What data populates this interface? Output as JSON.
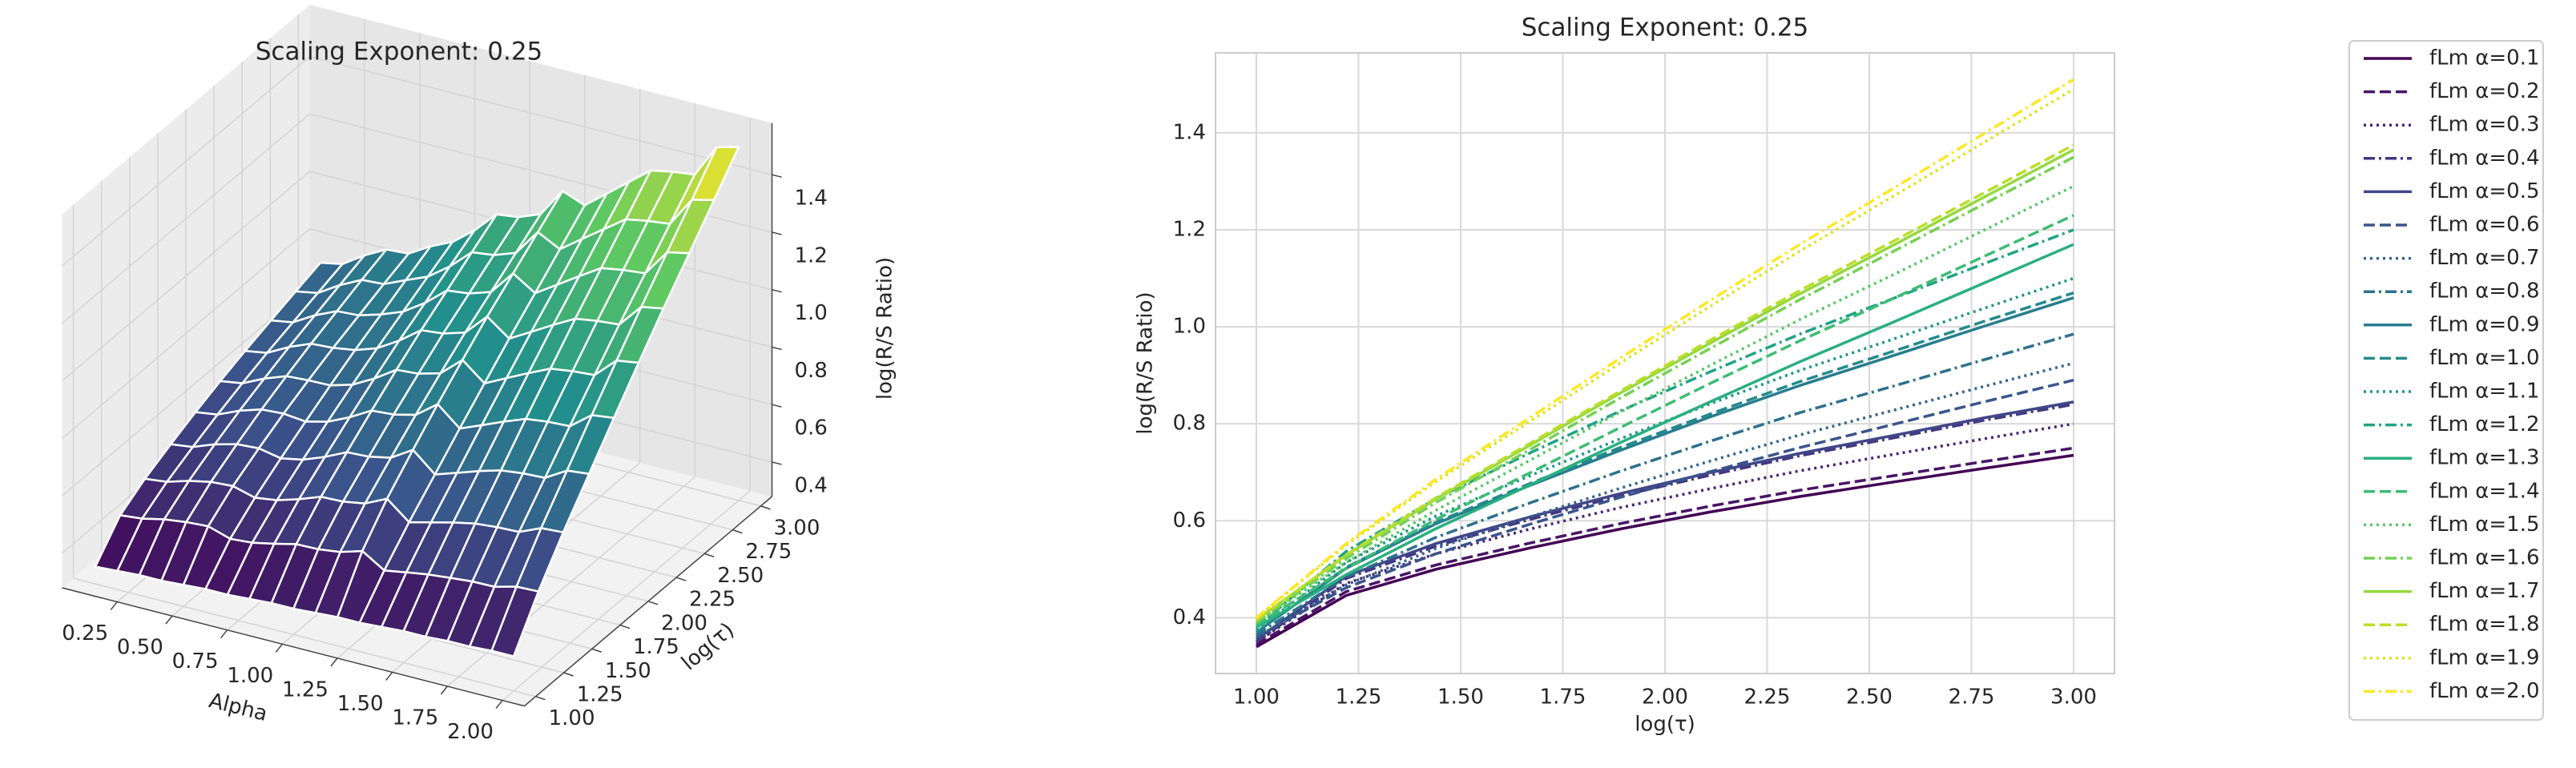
{
  "chart_data": [
    {
      "type": "surface",
      "title": "Scaling Exponent: 0.25",
      "xlabel": "Alpha",
      "ylabel": "log(τ)",
      "zlabel": "log(R/S Ratio)",
      "x": [
        0.1,
        0.2,
        0.3,
        0.4,
        0.5,
        0.6,
        0.7,
        0.8,
        0.9,
        1.0,
        1.1,
        1.2,
        1.3,
        1.4,
        1.5,
        1.6,
        1.7,
        1.8,
        1.9,
        2.0
      ],
      "xlim": [
        0,
        2.1
      ],
      "ylim": [
        0.9,
        3.1
      ],
      "zlim": [
        0.28,
        1.58
      ],
      "xticks": [
        {
          "value": 0.25,
          "label": "0.25"
        },
        {
          "value": 0.5,
          "label": "0.50"
        },
        {
          "value": 0.75,
          "label": "0.75"
        },
        {
          "value": 1,
          "label": "1.00"
        },
        {
          "value": 1.25,
          "label": "1.25"
        },
        {
          "value": 1.5,
          "label": "1.50"
        },
        {
          "value": 1.75,
          "label": "1.75"
        },
        {
          "value": 2,
          "label": "2.00"
        }
      ],
      "yticks": [
        {
          "value": 1,
          "label": "1.00"
        },
        {
          "value": 1.25,
          "label": "1.25"
        },
        {
          "value": 1.5,
          "label": "1.50"
        },
        {
          "value": 1.75,
          "label": "1.75"
        },
        {
          "value": 2,
          "label": "2.00"
        },
        {
          "value": 2.25,
          "label": "2.25"
        },
        {
          "value": 2.5,
          "label": "2.50"
        },
        {
          "value": 2.75,
          "label": "2.75"
        },
        {
          "value": 3,
          "label": "3.00"
        }
      ],
      "zticks": [
        0.4,
        0.6,
        0.8,
        {
          "value": 1,
          "label": "1.0"
        },
        1.2,
        1.4
      ],
      "colormap": "viridis",
      "edgecolor": "#ffffff"
    },
    {
      "type": "line",
      "title": "Scaling Exponent: 0.25",
      "xlabel": "log(τ)",
      "ylabel": "log(R/S Ratio)",
      "x": [
        1.0,
        1.22,
        1.44,
        1.67,
        1.89,
        2.11,
        2.33,
        2.56,
        2.78,
        3.0
      ],
      "xlim": [
        0.9,
        3.1
      ],
      "ylim": [
        0.285,
        1.565
      ],
      "xticks": [
        {
          "value": 1,
          "label": "1.00"
        },
        {
          "value": 1.25,
          "label": "1.25"
        },
        {
          "value": 1.5,
          "label": "1.50"
        },
        {
          "value": 1.75,
          "label": "1.75"
        },
        {
          "value": 2,
          "label": "2.00"
        },
        {
          "value": 2.25,
          "label": "2.25"
        },
        {
          "value": 2.5,
          "label": "2.50"
        },
        {
          "value": 2.75,
          "label": "2.75"
        },
        {
          "value": 3,
          "label": "3.00"
        }
      ],
      "yticks": [
        0.4,
        0.6,
        0.8,
        {
          "value": 1,
          "label": "1.0"
        },
        1.2,
        1.4
      ],
      "grid": true,
      "legend": "outside right",
      "series": [
        {
          "name": "fLm α=0.1",
          "color": "#440154",
          "style": "solid",
          "values": [
            0.34,
            0.446,
            0.5,
            0.544,
            0.583,
            0.618,
            0.65,
            0.68,
            0.708,
            0.735
          ]
        },
        {
          "name": "fLm α=0.2",
          "color": "#481467",
          "style": "dashed",
          "values": [
            0.345,
            0.454,
            0.509,
            0.554,
            0.594,
            0.63,
            0.663,
            0.693,
            0.722,
            0.75
          ]
        },
        {
          "name": "fLm α=0.3",
          "color": "#482576",
          "style": "dotted",
          "values": [
            0.35,
            0.471,
            0.532,
            0.583,
            0.627,
            0.666,
            0.703,
            0.737,
            0.769,
            0.8
          ]
        },
        {
          "name": "fLm α=0.4",
          "color": "#453781",
          "style": "dashdot",
          "values": [
            0.35,
            0.481,
            0.548,
            0.603,
            0.651,
            0.694,
            0.734,
            0.771,
            0.807,
            0.84
          ]
        },
        {
          "name": "fLm α=0.5",
          "color": "#404688",
          "style": "solid",
          "values": [
            0.355,
            0.486,
            0.553,
            0.608,
            0.656,
            0.699,
            0.739,
            0.776,
            0.812,
            0.845
          ]
        },
        {
          "name": "fLm α=0.6",
          "color": "#39558c",
          "style": "dashed",
          "values": [
            0.36,
            0.462,
            0.532,
            0.593,
            0.648,
            0.701,
            0.751,
            0.799,
            0.845,
            0.89
          ]
        },
        {
          "name": "fLm α=0.7",
          "color": "#33638d",
          "style": "dotted",
          "values": [
            0.36,
            0.468,
            0.543,
            0.608,
            0.667,
            0.723,
            0.777,
            0.828,
            0.877,
            0.925
          ]
        },
        {
          "name": "fLm α=0.8",
          "color": "#2d708e",
          "style": "dashdot",
          "values": [
            0.365,
            0.484,
            0.566,
            0.637,
            0.702,
            0.764,
            0.823,
            0.878,
            0.932,
            0.985
          ]
        },
        {
          "name": "fLm α=0.9",
          "color": "#287d8e",
          "style": "solid",
          "values": [
            0.37,
            0.502,
            0.594,
            0.673,
            0.745,
            0.814,
            0.879,
            0.941,
            1.001,
            1.06
          ]
        },
        {
          "name": "fLm α=1.0",
          "color": "#238a8d",
          "style": "dashed",
          "values": [
            0.37,
            0.504,
            0.597,
            0.677,
            0.751,
            0.82,
            0.887,
            0.95,
            1.011,
            1.07
          ]
        },
        {
          "name": "fLm α=1.1",
          "color": "#1f968b",
          "style": "dotted",
          "values": [
            0.375,
            0.514,
            0.61,
            0.693,
            0.769,
            0.841,
            0.91,
            0.975,
            1.038,
            1.1
          ]
        },
        {
          "name": "fLm α=1.2",
          "color": "#20a386",
          "style": "dashdot",
          "values": [
            0.38,
            0.537,
            0.646,
            0.74,
            0.826,
            0.907,
            0.985,
            1.059,
            1.13,
            1.2
          ]
        },
        {
          "name": "fLm α=1.3",
          "color": "#29af7f",
          "style": "solid",
          "values": [
            0.38,
            0.489,
            0.584,
            0.674,
            0.761,
            0.845,
            0.928,
            1.01,
            1.09,
            1.17
          ]
        },
        {
          "name": "fLm α=1.4",
          "color": "#3dbc74",
          "style": "dashed",
          "values": [
            0.385,
            0.502,
            0.603,
            0.699,
            0.792,
            0.883,
            0.971,
            1.059,
            1.145,
            1.23
          ]
        },
        {
          "name": "fLm α=1.5",
          "color": "#56c667",
          "style": "dotted",
          "values": [
            0.39,
            0.514,
            0.622,
            0.725,
            0.824,
            0.92,
            1.015,
            1.108,
            1.199,
            1.29
          ]
        },
        {
          "name": "fLm α=1.6",
          "color": "#75d054",
          "style": "dashdot",
          "values": [
            0.39,
            0.522,
            0.638,
            0.747,
            0.853,
            0.955,
            1.056,
            1.156,
            1.253,
            1.35
          ]
        },
        {
          "name": "fLm α=1.7",
          "color": "#95d840",
          "style": "solid",
          "values": [
            0.395,
            0.529,
            0.645,
            0.756,
            0.863,
            0.966,
            1.068,
            1.169,
            1.267,
            1.365
          ]
        },
        {
          "name": "fLm α=1.8",
          "color": "#bade28",
          "style": "dashed",
          "values": [
            0.395,
            0.53,
            0.648,
            0.76,
            0.867,
            0.972,
            1.075,
            1.177,
            1.276,
            1.375
          ]
        },
        {
          "name": "fLm α=1.9",
          "color": "#dde318",
          "style": "dotted",
          "values": [
            0.4,
            0.55,
            0.681,
            0.805,
            0.925,
            1.042,
            1.156,
            1.27,
            1.38,
            1.49
          ]
        },
        {
          "name": "fLm α=2.0",
          "color": "#fde725",
          "style": "dashdot",
          "values": [
            0.4,
            0.553,
            0.686,
            0.813,
            0.935,
            1.054,
            1.17,
            1.286,
            1.398,
            1.51
          ]
        }
      ]
    }
  ]
}
